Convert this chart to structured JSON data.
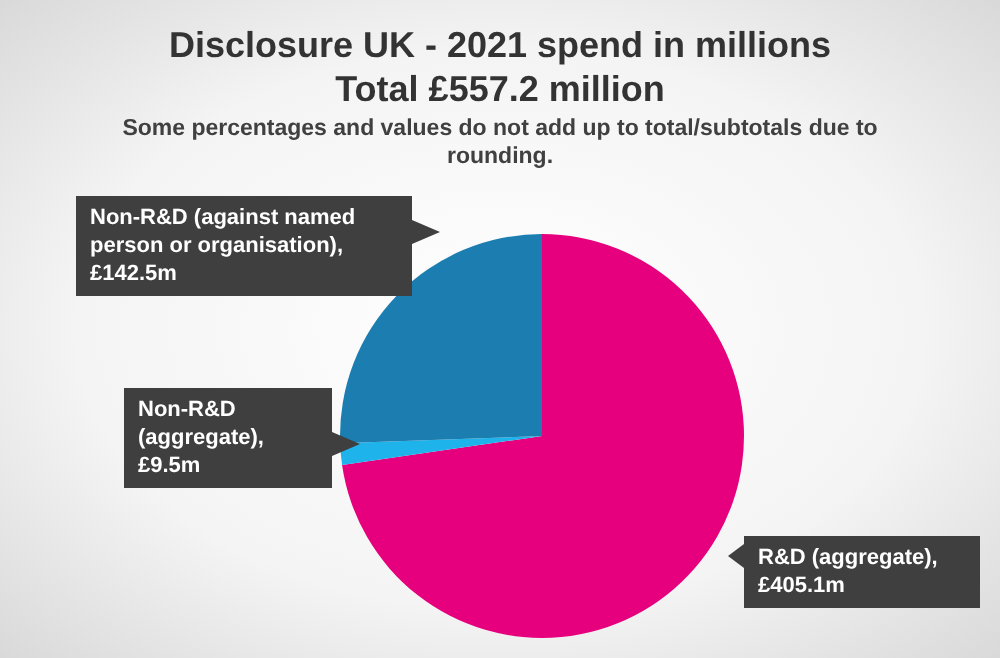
{
  "chart_data": {
    "type": "pie",
    "title": "Disclosure UK - 2021 spend in millions",
    "subtitle": "Total £557.2 million",
    "annotations": [
      "Some percentages and values do not add up to total/subtotals due to rounding."
    ],
    "categories": [
      "R&D (aggregate), £405.1m",
      "Non-R&D (aggregate), £9.5m",
      "Non-R&D (against named person or organisation), £142.5m"
    ],
    "values": [
      405.1,
      9.5,
      142.5
    ],
    "colors": [
      "#e6007e",
      "#1fb3ec",
      "#1b7db0"
    ],
    "legend": false
  }
}
